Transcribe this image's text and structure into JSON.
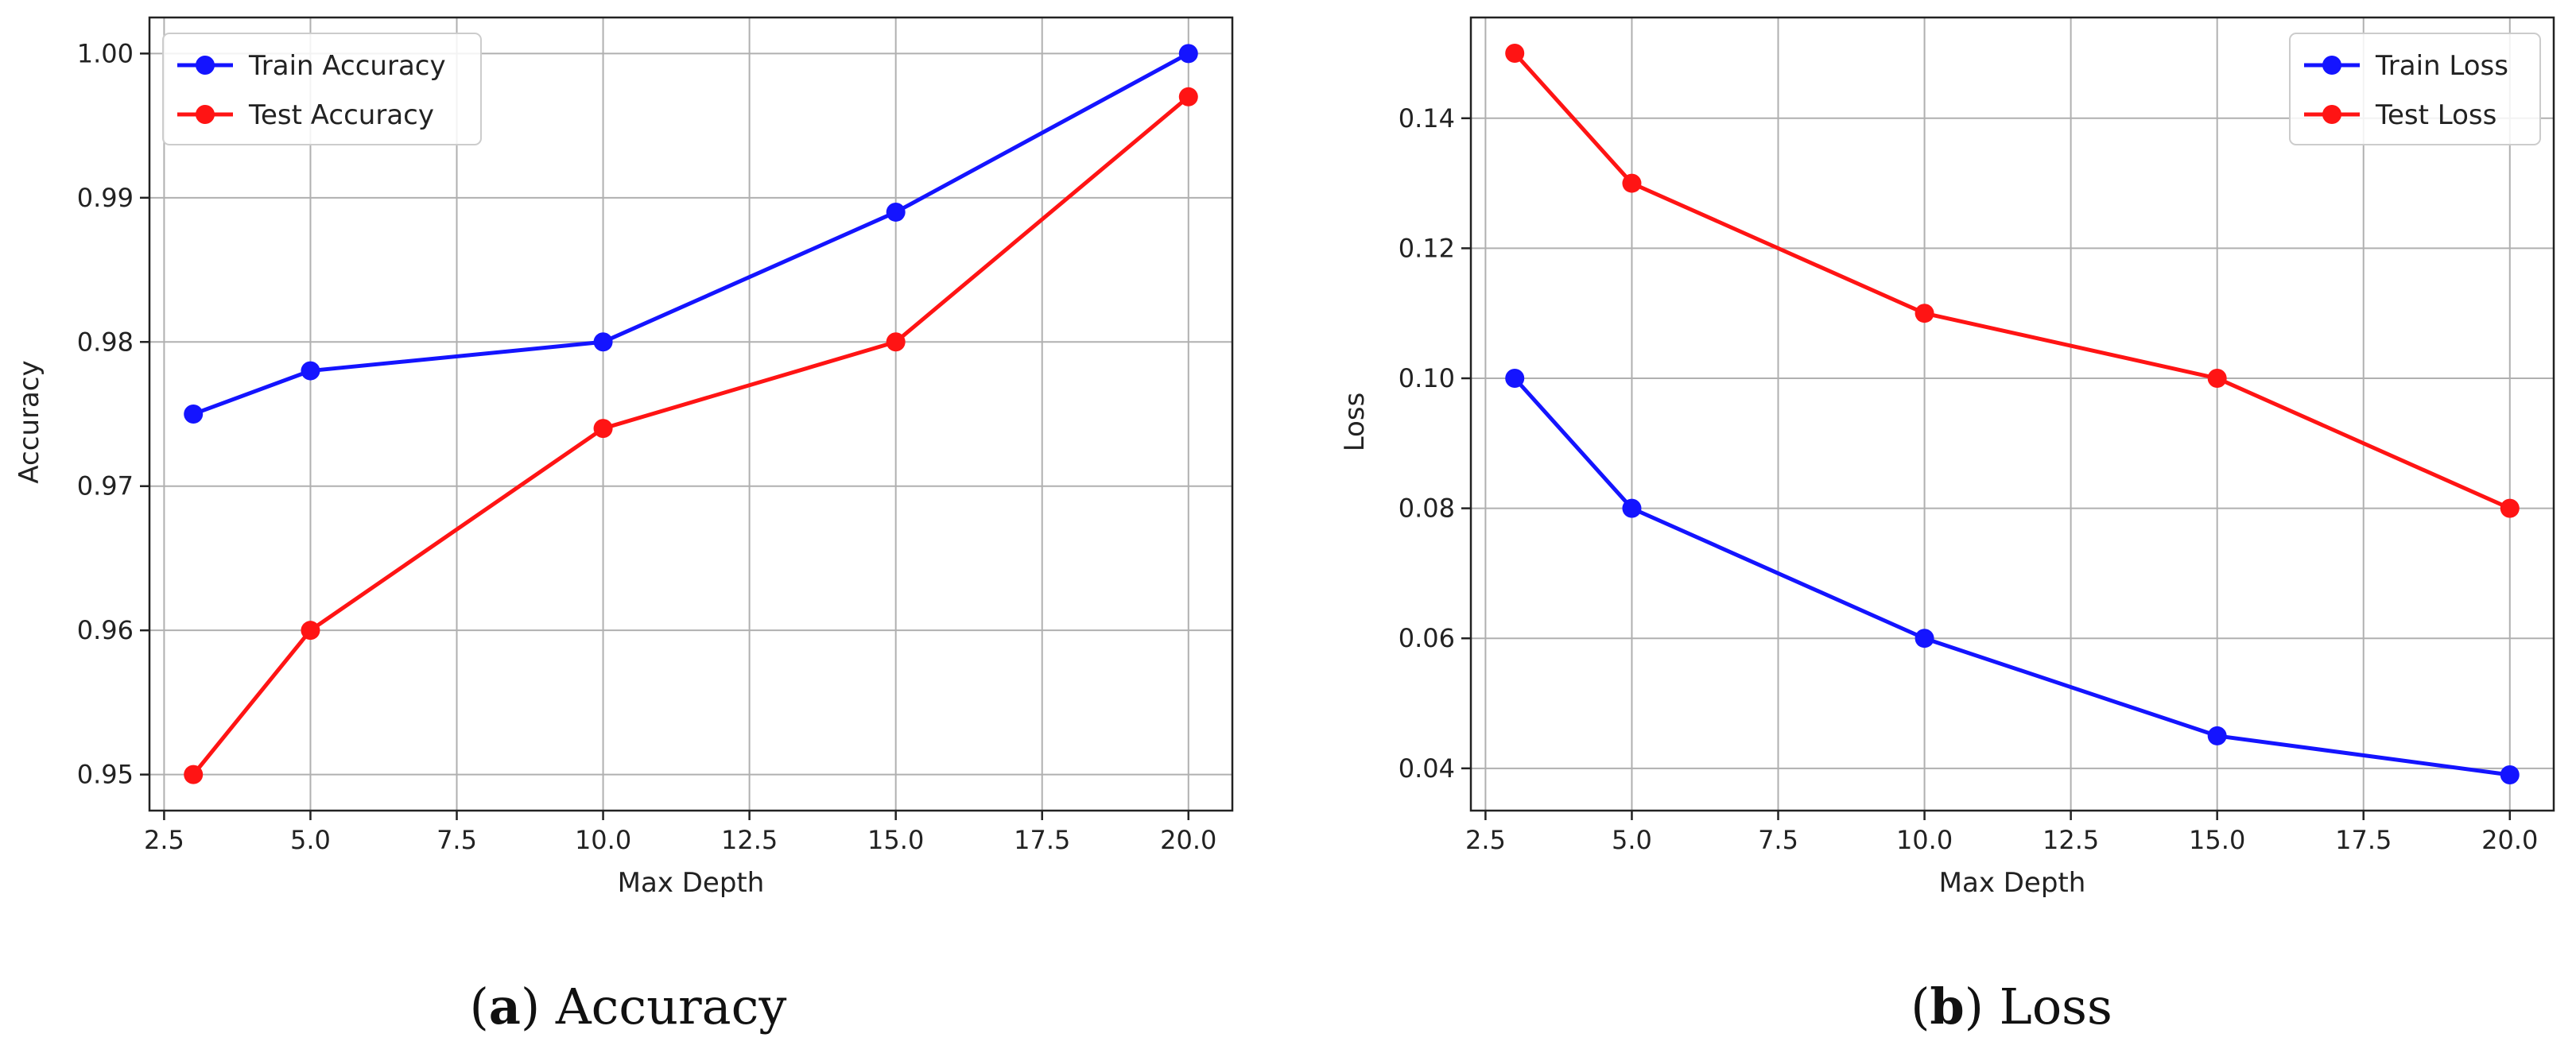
{
  "chart_data": [
    {
      "type": "line",
      "panel": "a",
      "caption_letter": "a",
      "caption_text": "Accuracy",
      "title": "",
      "xlabel": "Max Depth",
      "ylabel": "Accuracy",
      "xlim": [
        2.25,
        20.75
      ],
      "ylim": [
        0.9475,
        1.0025
      ],
      "xticks": [
        2.5,
        5.0,
        7.5,
        10.0,
        12.5,
        15.0,
        17.5,
        20.0
      ],
      "xtick_labels": [
        "2.5",
        "5.0",
        "7.5",
        "10.0",
        "12.5",
        "15.0",
        "17.5",
        "20.0"
      ],
      "yticks": [
        0.95,
        0.96,
        0.97,
        0.98,
        0.99,
        1.0
      ],
      "ytick_labels": [
        "0.95",
        "0.96",
        "0.97",
        "0.98",
        "0.99",
        "1.00"
      ],
      "grid": true,
      "legend": "top-left",
      "x": [
        3,
        5,
        10,
        15,
        20
      ],
      "series": [
        {
          "name": "Train Accuracy",
          "color": "#1414ff",
          "values": [
            0.975,
            0.978,
            0.98,
            0.989,
            1.0
          ]
        },
        {
          "name": "Test Accuracy",
          "color": "#ff1414",
          "values": [
            0.95,
            0.96,
            0.974,
            0.98,
            0.997
          ]
        }
      ]
    },
    {
      "type": "line",
      "panel": "b",
      "caption_letter": "b",
      "caption_text": "Loss",
      "title": "",
      "xlabel": "Max Depth",
      "ylabel": "Loss",
      "xlim": [
        2.25,
        20.75
      ],
      "ylim": [
        0.0335,
        0.1555
      ],
      "xticks": [
        2.5,
        5.0,
        7.5,
        10.0,
        12.5,
        15.0,
        17.5,
        20.0
      ],
      "xtick_labels": [
        "2.5",
        "5.0",
        "7.5",
        "10.0",
        "12.5",
        "15.0",
        "17.5",
        "20.0"
      ],
      "yticks": [
        0.04,
        0.06,
        0.08,
        0.1,
        0.12,
        0.14
      ],
      "ytick_labels": [
        "0.04",
        "0.06",
        "0.08",
        "0.10",
        "0.12",
        "0.14"
      ],
      "grid": true,
      "legend": "top-right",
      "x": [
        3,
        5,
        10,
        15,
        20
      ],
      "series": [
        {
          "name": "Train Loss",
          "color": "#1414ff",
          "values": [
            0.1,
            0.08,
            0.06,
            0.045,
            0.039
          ]
        },
        {
          "name": "Test Loss",
          "color": "#ff1414",
          "values": [
            0.15,
            0.13,
            0.11,
            0.1,
            0.08
          ]
        }
      ]
    }
  ]
}
